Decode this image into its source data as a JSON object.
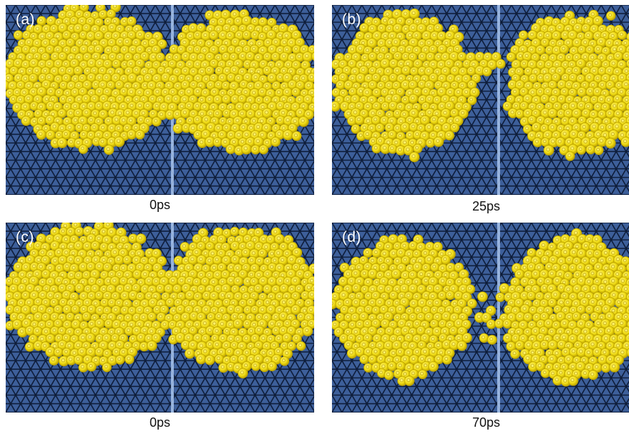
{
  "colors": {
    "substrate": "#3d5f9a",
    "lattice": "#0e1d3a",
    "grain_boundary": "#a9c6ee",
    "gold": "#f0dc14",
    "gold_edge": "#b89e00",
    "gold_highlight": "#fff582"
  },
  "panels": [
    {
      "label": "(a)",
      "caption": "0ps",
      "state": "necked-dimer"
    },
    {
      "label": "(b)",
      "caption": "25ps",
      "state": "separated-with-bridge-atoms"
    },
    {
      "label": "(c)",
      "caption": "0ps",
      "state": "necked-dimer"
    },
    {
      "label": "(d)",
      "caption": "70ps",
      "state": "fragmented-bridge"
    }
  ]
}
